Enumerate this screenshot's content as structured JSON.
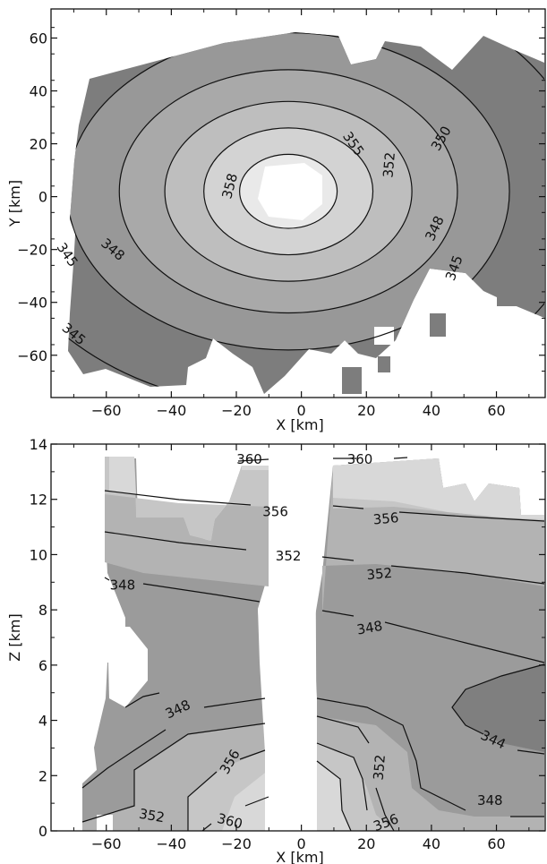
{
  "colors": {
    "ring_345": "#7d7d7d",
    "ring_348": "#989898",
    "ring_350": "#a9a9a9",
    "ring_352": "#bebebe",
    "ring_355": "#d3d3d3",
    "ring_358": "#e9e9e9",
    "z_344": "#7f7f7f",
    "z_348": "#9b9b9b",
    "z_352": "#b3b3b3",
    "z_356": "#c6c6c6",
    "z_360": "#d8d8d8",
    "line": "#111111"
  },
  "chart_data": [
    {
      "type": "heatmap",
      "title": "",
      "xlabel": "X [km]",
      "ylabel": "Y [km]",
      "xlim": [
        -77,
        75
      ],
      "ylim": [
        -76,
        71
      ],
      "xticks": [
        -60,
        -40,
        -20,
        0,
        20,
        40,
        60
      ],
      "yticks": [
        -60,
        -40,
        -20,
        0,
        20,
        40,
        60
      ],
      "xtick_labels": [
        "−60",
        "−40",
        "−20",
        "0",
        "20",
        "40",
        "60"
      ],
      "ytick_labels": [
        "−60",
        "−40",
        "−20",
        "0",
        "20",
        "40",
        "60"
      ],
      "grid": false,
      "contour_center": [
        -4,
        2
      ],
      "contour_levels": [
        {
          "value": 345,
          "label": "345",
          "rx": 92,
          "ry": 82
        },
        {
          "value": 348,
          "label": "348",
          "rx": 68,
          "ry": 60
        },
        {
          "value": 350,
          "label": "350",
          "rx": 52,
          "ry": 46
        },
        {
          "value": 352,
          "label": "352",
          "rx": 38,
          "ry": 34
        },
        {
          "value": 355,
          "label": "355",
          "rx": 26,
          "ry": 24
        },
        {
          "value": 358,
          "label": "358",
          "rx": 15,
          "ry": 14
        }
      ],
      "contour_labels": [
        {
          "text": "358",
          "x": -22,
          "y": 4,
          "rotate": -75
        },
        {
          "text": "355",
          "x": 16,
          "y": 20,
          "rotate": 55
        },
        {
          "text": "352",
          "x": 27,
          "y": 12,
          "rotate": -85
        },
        {
          "text": "350",
          "x": 43,
          "y": 22,
          "rotate": -60
        },
        {
          "text": "348",
          "x": -58,
          "y": -20,
          "rotate": 40
        },
        {
          "text": "348",
          "x": 41,
          "y": -12,
          "rotate": -65
        },
        {
          "text": "345",
          "x": -72,
          "y": -22,
          "rotate": 55
        },
        {
          "text": "345",
          "x": -70,
          "y": -52,
          "rotate": 40
        },
        {
          "text": "345",
          "x": 47,
          "y": -27,
          "rotate": -70
        }
      ]
    },
    {
      "type": "heatmap",
      "title": "",
      "xlabel": "X [km]",
      "ylabel": "Z [km]",
      "xlim": [
        -77,
        75
      ],
      "ylim": [
        0,
        14
      ],
      "xticks": [
        -60,
        -40,
        -20,
        0,
        20,
        40,
        60
      ],
      "yticks": [
        0,
        2,
        4,
        6,
        8,
        10,
        12,
        14
      ],
      "xtick_labels": [
        "−60",
        "−40",
        "−20",
        "0",
        "20",
        "40",
        "60"
      ],
      "ytick_labels": [
        "0",
        "2",
        "4",
        "6",
        "8",
        "10",
        "12",
        "14"
      ],
      "grid": false,
      "contour_labels": [
        {
          "text": "360",
          "x": -16,
          "y": 13.45,
          "rotate": 0
        },
        {
          "text": "360",
          "x": 18,
          "y": 13.45,
          "rotate": 0
        },
        {
          "text": "356",
          "x": -8,
          "y": 11.55,
          "rotate": 0
        },
        {
          "text": "356",
          "x": 26,
          "y": 11.3,
          "rotate": -5
        },
        {
          "text": "352",
          "x": -4,
          "y": 9.95,
          "rotate": 0
        },
        {
          "text": "352",
          "x": 24,
          "y": 9.3,
          "rotate": -5
        },
        {
          "text": "348",
          "x": -55,
          "y": 8.9,
          "rotate": 0
        },
        {
          "text": "348",
          "x": 21,
          "y": 7.35,
          "rotate": -10
        },
        {
          "text": "344",
          "x": 59,
          "y": 3.3,
          "rotate": 25
        },
        {
          "text": "348",
          "x": -38,
          "y": 4.4,
          "rotate": -25
        },
        {
          "text": "356",
          "x": -22,
          "y": 2.5,
          "rotate": -60
        },
        {
          "text": "352",
          "x": 24,
          "y": 2.3,
          "rotate": -85
        },
        {
          "text": "348",
          "x": 58,
          "y": 1.1,
          "rotate": 0
        },
        {
          "text": "352",
          "x": -46,
          "y": 0.55,
          "rotate": 10
        },
        {
          "text": "360",
          "x": -22,
          "y": 0.35,
          "rotate": 15
        },
        {
          "text": "356",
          "x": 26,
          "y": 0.3,
          "rotate": -20
        }
      ]
    }
  ]
}
